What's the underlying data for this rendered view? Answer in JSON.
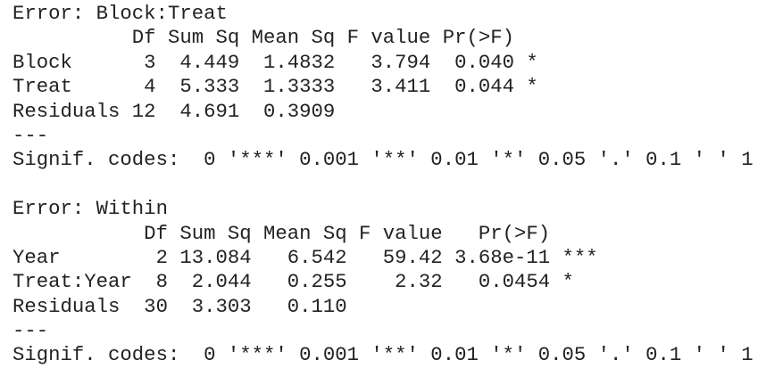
{
  "colors": {
    "background": "#ffffff",
    "text": "#222222"
  },
  "console": {
    "language": "R ANOVA summary output",
    "blocks": [
      {
        "title": "Error: Block:Treat",
        "lines": {
          "header": "          Df Sum Sq Mean Sq F value Pr(>F)",
          "rows": [
            "Block      3  4.449  1.4832   3.794  0.040 *",
            "Treat      4  5.333  1.3333   3.411  0.044 *",
            "Residuals 12  4.691  0.3909"
          ],
          "separator": "---",
          "signif_codes": "Signif. codes:  0 '***' 0.001 '**' 0.01 '*' 0.05 '.' 0.1 ' ' 1"
        },
        "table": {
          "columns": [
            "Df",
            "Sum Sq",
            "Mean Sq",
            "F value",
            "Pr(>F)"
          ],
          "rows": [
            {
              "term": "Block",
              "df": "3",
              "sum_sq": "4.449",
              "mean_sq": "1.4832",
              "f_value": "3.794",
              "pr_f": "0.040",
              "signif": "*"
            },
            {
              "term": "Treat",
              "df": "4",
              "sum_sq": "5.333",
              "mean_sq": "1.3333",
              "f_value": "3.411",
              "pr_f": "0.044",
              "signif": "*"
            },
            {
              "term": "Residuals",
              "df": "12",
              "sum_sq": "4.691",
              "mean_sq": "0.3909",
              "f_value": "",
              "pr_f": "",
              "signif": ""
            }
          ]
        }
      },
      {
        "title": "Error: Within",
        "lines": {
          "header": "           Df Sum Sq Mean Sq F value   Pr(>F)",
          "rows": [
            "Year        2 13.084   6.542   59.42 3.68e-11 ***",
            "Treat:Year  8  2.044   0.255    2.32   0.0454 *",
            "Residuals  30  3.303   0.110"
          ],
          "separator": "---",
          "signif_codes": "Signif. codes:  0 '***' 0.001 '**' 0.01 '*' 0.05 '.' 0.1 ' ' 1"
        },
        "table": {
          "columns": [
            "Df",
            "Sum Sq",
            "Mean Sq",
            "F value",
            "Pr(>F)"
          ],
          "rows": [
            {
              "term": "Year",
              "df": "2",
              "sum_sq": "13.084",
              "mean_sq": "6.542",
              "f_value": "59.42",
              "pr_f": "3.68e-11",
              "signif": "***"
            },
            {
              "term": "Treat:Year",
              "df": "8",
              "sum_sq": "2.044",
              "mean_sq": "0.255",
              "f_value": "2.32",
              "pr_f": "0.0454",
              "signif": "*"
            },
            {
              "term": "Residuals",
              "df": "30",
              "sum_sq": "3.303",
              "mean_sq": "0.110",
              "f_value": "",
              "pr_f": "",
              "signif": ""
            }
          ]
        }
      }
    ]
  }
}
